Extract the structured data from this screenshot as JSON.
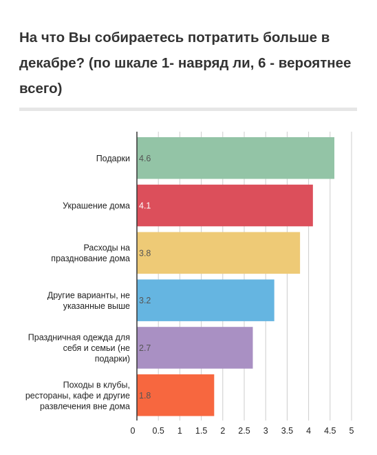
{
  "chart_data": {
    "type": "bar",
    "orientation": "horizontal",
    "title": "На что Вы собираетесь потратить больше в декабре? (по шкале 1- навряд ли, 6 - вероятнее всего)",
    "categories": [
      "Подарки",
      "Украшение дома",
      "Расходы на празднование дома",
      "Другие варианты, не указанные выше",
      "Праздничная одежда для себя и семьи (не подарки)",
      "Походы в клубы, рестораны, кафе и другие развлечения вне дома"
    ],
    "category_lines": [
      [
        "Подарки"
      ],
      [
        "Украшение дома"
      ],
      [
        "Расходы на",
        "празднование дома"
      ],
      [
        "Другие варианты, не",
        "указанные выше"
      ],
      [
        "Праздничная одежда для",
        "себя и семьи (не",
        "подарки)"
      ],
      [
        "Походы в клубы,",
        "рестораны, кафе и другие",
        "развлечения вне дома"
      ]
    ],
    "values": [
      4.6,
      4.1,
      3.8,
      3.2,
      2.7,
      1.8
    ],
    "value_labels": [
      "4.6",
      "4.1",
      "3.8",
      "3.2",
      "2.7",
      "1.8"
    ],
    "colors": [
      "#93c4a6",
      "#dc4f5b",
      "#eeca76",
      "#65b5e1",
      "#a990c3",
      "#f7673f"
    ],
    "value_label_colors": [
      "#555555",
      "#ffffff",
      "#555555",
      "#555555",
      "#555555",
      "#555555"
    ],
    "xlim": [
      0,
      5
    ],
    "ticks": [
      0,
      0.5,
      1,
      1.5,
      2,
      2.5,
      3,
      3.5,
      4,
      4.5,
      5
    ],
    "tick_labels": [
      "0",
      "0.5",
      "1",
      "1.5",
      "2",
      "2.5",
      "3",
      "3.5",
      "4",
      "4.5",
      "5"
    ],
    "grid": true,
    "xlabel": "",
    "ylabel": ""
  }
}
